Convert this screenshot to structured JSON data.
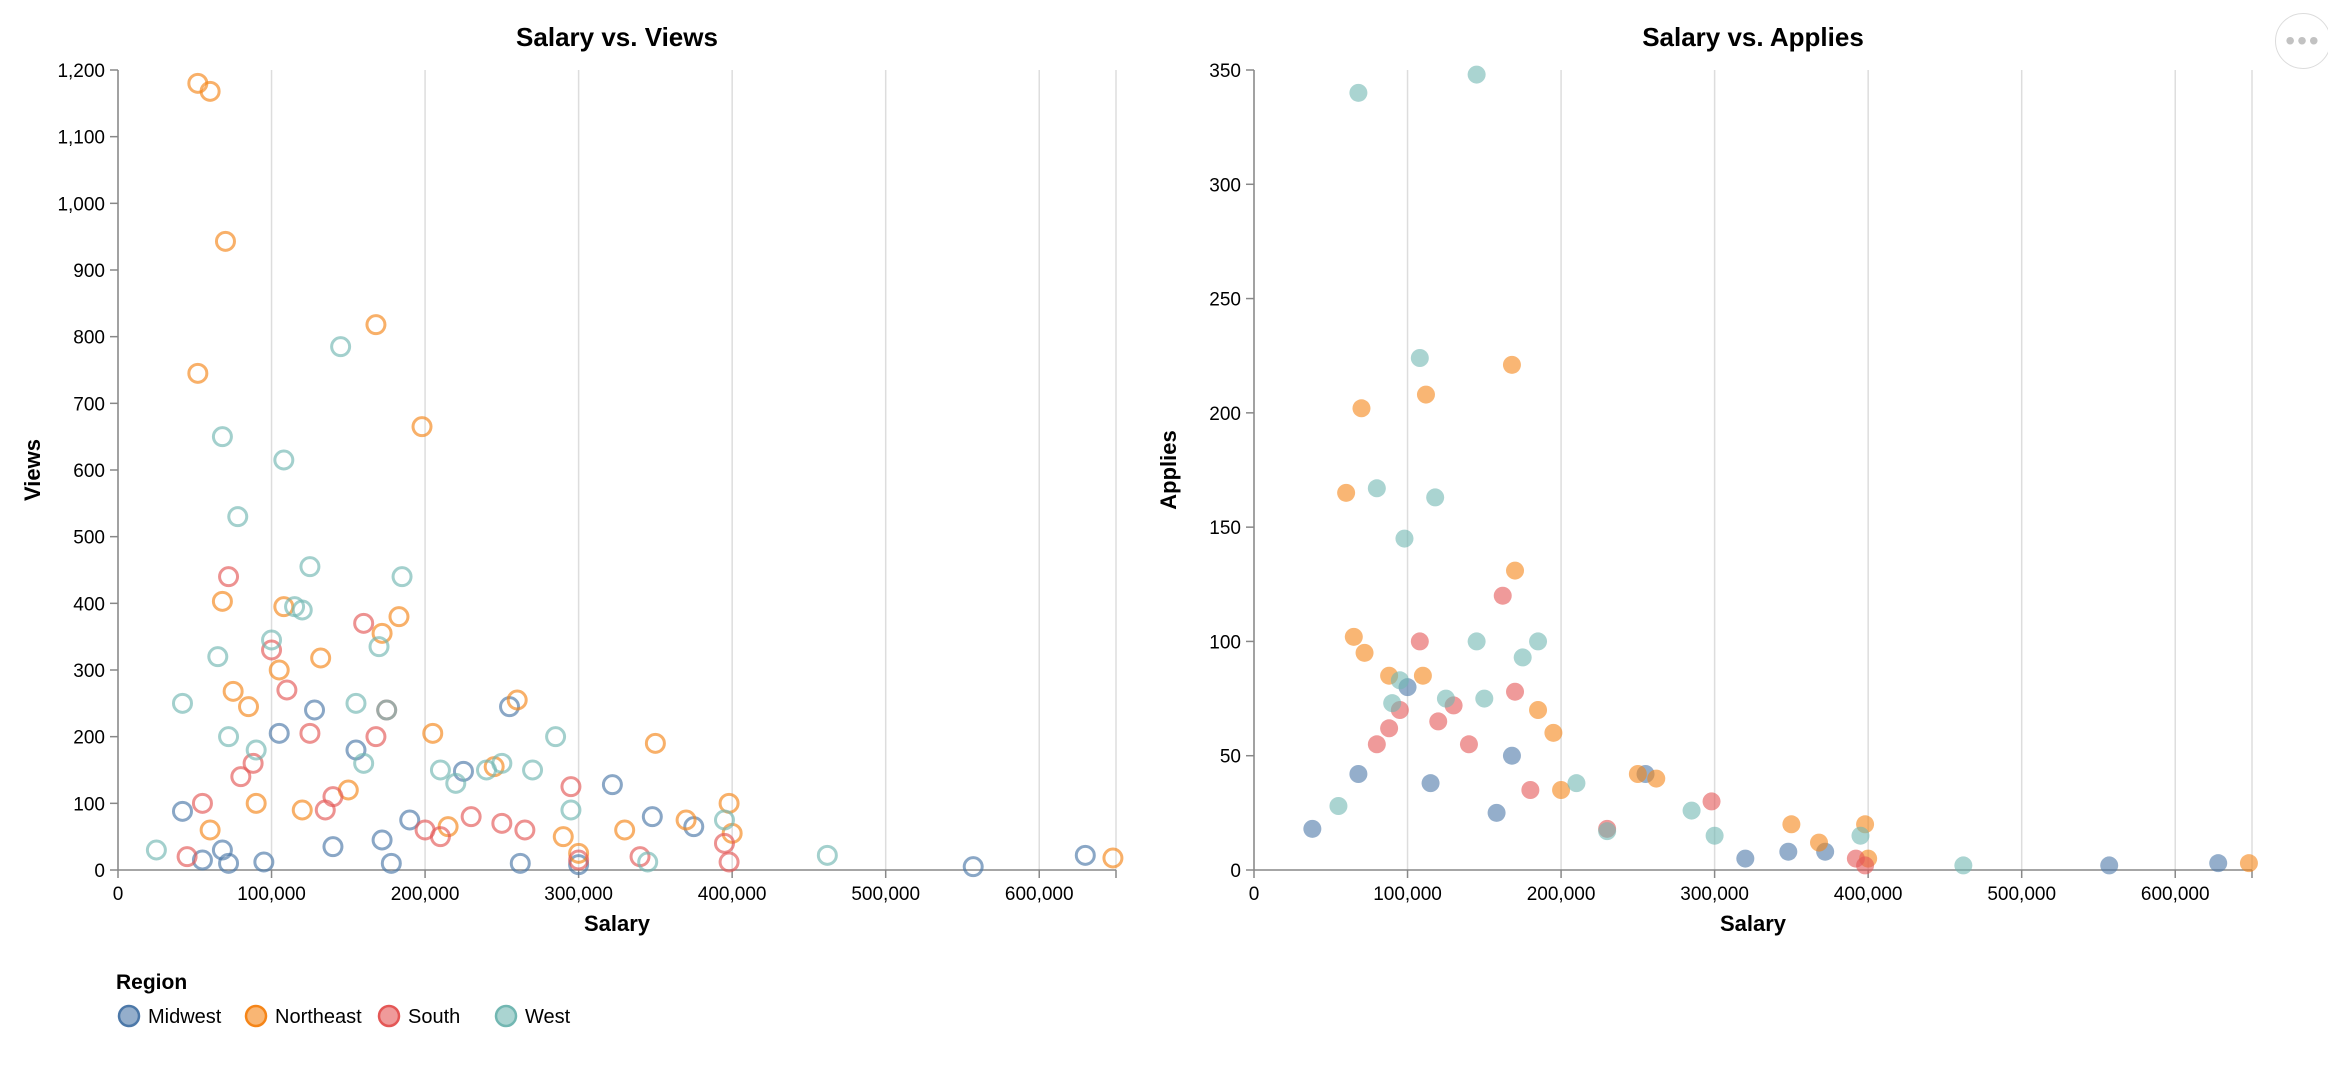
{
  "actions_menu": {
    "icon": "more-horizontal-icon",
    "glyph": "•••"
  },
  "legend": {
    "title": "Region",
    "entries": [
      {
        "label": "Midwest",
        "color": "#4c78a8"
      },
      {
        "label": "Northeast",
        "color": "#f58518"
      },
      {
        "label": "South",
        "color": "#e45756"
      },
      {
        "label": "West",
        "color": "#72b7b2"
      }
    ]
  },
  "chart_data": [
    {
      "type": "scatter",
      "mark": "hollow-circle",
      "title": "Salary vs. Views",
      "xlabel": "Salary",
      "ylabel": "Views",
      "xlim": [
        0,
        650000
      ],
      "ylim": [
        0,
        1200
      ],
      "x_ticks": [
        0,
        100000,
        200000,
        300000,
        400000,
        500000,
        600000
      ],
      "x_tick_labels": [
        "0",
        "100,000",
        "200,000",
        "300,000",
        "400,000",
        "500,000",
        "600,000"
      ],
      "y_ticks": [
        0,
        100,
        200,
        300,
        400,
        500,
        600,
        700,
        800,
        900,
        1000,
        1100,
        1200
      ],
      "y_tick_labels": [
        "0",
        "100",
        "200",
        "300",
        "400",
        "500",
        "600",
        "700",
        "800",
        "900",
        "1,000",
        "1,100",
        "1,200"
      ],
      "grid": "x",
      "legend": "bottom-left",
      "series": [
        {
          "name": "Midwest",
          "x": [
            42000,
            55000,
            68000,
            72000,
            95000,
            105000,
            128000,
            140000,
            155000,
            172000,
            178000,
            190000,
            225000,
            255000,
            262000,
            300000,
            322000,
            348000,
            375000,
            557000,
            630000
          ],
          "y": [
            88,
            15,
            30,
            10,
            12,
            205,
            240,
            35,
            180,
            45,
            10,
            75,
            148,
            245,
            10,
            8,
            128,
            80,
            65,
            5,
            22
          ]
        },
        {
          "name": "Northeast",
          "x": [
            52000,
            60000,
            70000,
            52000,
            68000,
            75000,
            85000,
            105000,
            108000,
            132000,
            168000,
            172000,
            183000,
            198000,
            205000,
            245000,
            260000,
            290000,
            300000,
            330000,
            350000,
            370000,
            398000,
            400000,
            648000,
            60000,
            90000,
            120000,
            150000,
            215000
          ],
          "y": [
            1180,
            1168,
            943,
            745,
            403,
            268,
            245,
            300,
            395,
            318,
            818,
            355,
            380,
            665,
            205,
            155,
            255,
            50,
            25,
            60,
            190,
            75,
            100,
            55,
            18,
            60,
            100,
            90,
            120,
            65
          ]
        },
        {
          "name": "South",
          "x": [
            45000,
            55000,
            72000,
            88000,
            100000,
            110000,
            125000,
            135000,
            160000,
            168000,
            175000,
            200000,
            230000,
            265000,
            295000,
            300000,
            340000,
            395000,
            398000,
            80000,
            140000,
            210000,
            250000
          ],
          "y": [
            20,
            100,
            440,
            160,
            330,
            270,
            205,
            90,
            370,
            200,
            240,
            60,
            80,
            60,
            125,
            15,
            20,
            40,
            12,
            140,
            110,
            50,
            70
          ]
        },
        {
          "name": "West",
          "x": [
            42000,
            65000,
            68000,
            72000,
            78000,
            100000,
            108000,
            115000,
            120000,
            125000,
            145000,
            155000,
            170000,
            175000,
            185000,
            210000,
            240000,
            270000,
            285000,
            295000,
            345000,
            395000,
            462000,
            25000,
            90000,
            160000,
            220000,
            250000
          ],
          "y": [
            250,
            320,
            650,
            200,
            530,
            345,
            615,
            395,
            390,
            455,
            785,
            250,
            335,
            240,
            440,
            150,
            150,
            150,
            200,
            90,
            12,
            75,
            22,
            30,
            180,
            160,
            130,
            160
          ]
        }
      ]
    },
    {
      "type": "scatter",
      "mark": "filled-circle",
      "title": "Salary vs. Applies",
      "xlabel": "Salary",
      "ylabel": "Applies",
      "xlim": [
        0,
        650000
      ],
      "ylim": [
        0,
        350
      ],
      "x_ticks": [
        0,
        100000,
        200000,
        300000,
        400000,
        500000,
        600000
      ],
      "x_tick_labels": [
        "0",
        "100,000",
        "200,000",
        "300,000",
        "400,000",
        "500,000",
        "600,000"
      ],
      "y_ticks": [
        0,
        50,
        100,
        150,
        200,
        250,
        300,
        350
      ],
      "y_tick_labels": [
        "0",
        "50",
        "100",
        "150",
        "200",
        "250",
        "300",
        "350"
      ],
      "grid": "x",
      "legend": "bottom-left",
      "series": [
        {
          "name": "Midwest",
          "x": [
            38000,
            68000,
            100000,
            115000,
            158000,
            168000,
            255000,
            320000,
            348000,
            372000,
            557000,
            628000
          ],
          "y": [
            18,
            42,
            80,
            38,
            25,
            50,
            42,
            5,
            8,
            8,
            2,
            3
          ]
        },
        {
          "name": "Northeast",
          "x": [
            60000,
            65000,
            70000,
            72000,
            88000,
            110000,
            112000,
            168000,
            170000,
            185000,
            195000,
            200000,
            250000,
            262000,
            350000,
            368000,
            398000,
            400000,
            648000
          ],
          "y": [
            165,
            102,
            202,
            95,
            85,
            85,
            208,
            221,
            131,
            70,
            60,
            35,
            42,
            40,
            20,
            12,
            20,
            5,
            3
          ]
        },
        {
          "name": "South",
          "x": [
            80000,
            88000,
            95000,
            108000,
            120000,
            130000,
            140000,
            162000,
            170000,
            180000,
            230000,
            298000,
            392000,
            398000
          ],
          "y": [
            55,
            62,
            70,
            100,
            65,
            72,
            55,
            120,
            78,
            35,
            18,
            30,
            5,
            2
          ]
        },
        {
          "name": "West",
          "x": [
            68000,
            80000,
            95000,
            98000,
            108000,
            118000,
            125000,
            145000,
            145000,
            150000,
            175000,
            185000,
            210000,
            230000,
            285000,
            300000,
            395000,
            462000,
            55000,
            90000
          ],
          "y": [
            340,
            167,
            83,
            145,
            224,
            163,
            75,
            348,
            100,
            75,
            93,
            100,
            38,
            17,
            26,
            15,
            15,
            2,
            28,
            73
          ]
        }
      ]
    }
  ]
}
